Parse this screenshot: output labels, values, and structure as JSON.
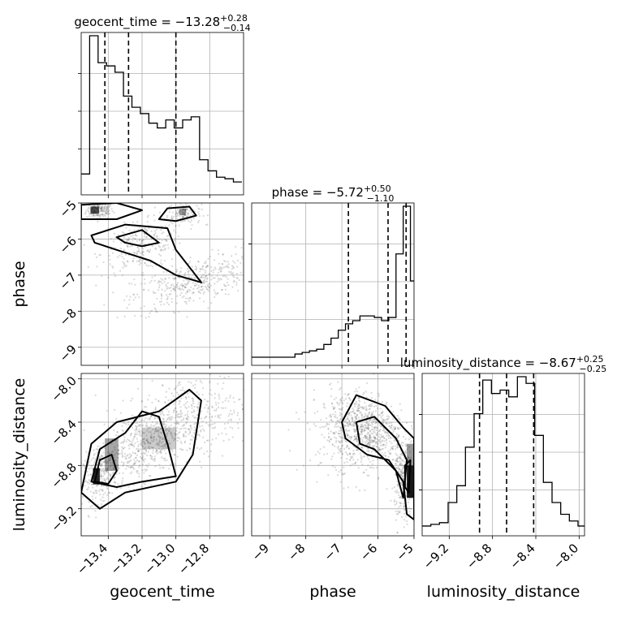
{
  "chart_data": {
    "type": "corner",
    "parameters": [
      "geocent_time",
      "phase",
      "luminosity_distance"
    ],
    "axis_labels": {
      "geocent_time": "geocent_time",
      "phase": "phase",
      "luminosity_distance": "luminosity_distance"
    },
    "titles": {
      "geocent_time": {
        "prefix": "geocent_time = ",
        "median": "−13.28",
        "upper": "+0.28",
        "lower": "−0.14"
      },
      "phase": {
        "prefix": "phase = ",
        "median": "−5.72",
        "upper": "+0.50",
        "lower": "−1.10"
      },
      "luminosity_distance": {
        "prefix": "luminosity_distance = ",
        "median": "−8.67",
        "upper": "+0.25",
        "lower": "−0.25"
      }
    },
    "ranges": {
      "geocent_time": [
        -13.56,
        -12.6
      ],
      "phase": [
        -9.5,
        -5.0
      ],
      "luminosity_distance": [
        -9.45,
        -7.95
      ]
    },
    "ticks": {
      "geocent_time": {
        "values": [
          -13.4,
          -13.2,
          -13.0,
          -12.8
        ],
        "labels": [
          "−13.4",
          "−13.2",
          "−13.0",
          "−12.8"
        ]
      },
      "phase": {
        "values": [
          -9,
          -8,
          -7,
          -6,
          -5
        ],
        "labels": [
          "−9",
          "−8",
          "−7",
          "−6",
          "−5"
        ]
      },
      "luminosity_distance": {
        "values": [
          -9.2,
          -8.8,
          -8.4,
          -8.0
        ],
        "labels": [
          "−9.2",
          "−8.8",
          "−8.4",
          "−8.0"
        ]
      }
    },
    "quantiles": {
      "geocent_time": [
        -13.42,
        -13.28,
        -13.0
      ],
      "phase": [
        -6.82,
        -5.72,
        -5.22
      ],
      "luminosity_distance": [
        -8.92,
        -8.67,
        -8.42
      ]
    },
    "histograms": {
      "geocent_time": {
        "edges": [
          -13.56,
          -13.51,
          -13.46,
          -13.41,
          -13.36,
          -13.31,
          -13.26,
          -13.21,
          -13.16,
          -13.11,
          -13.06,
          -13.01,
          -12.96,
          -12.91,
          -12.86,
          -12.81,
          -12.76,
          -12.71,
          -12.66,
          -12.61
        ],
        "counts": [
          0.08,
          0.95,
          0.78,
          0.76,
          0.72,
          0.57,
          0.5,
          0.46,
          0.4,
          0.37,
          0.42,
          0.37,
          0.42,
          0.44,
          0.17,
          0.1,
          0.06,
          0.05,
          0.03
        ]
      },
      "phase": {
        "edges": [
          -9.5,
          -9.3,
          -9.1,
          -8.9,
          -8.7,
          -8.5,
          -8.3,
          -8.1,
          -7.9,
          -7.7,
          -7.5,
          -7.3,
          -7.1,
          -6.9,
          -6.7,
          -6.5,
          -6.3,
          -6.1,
          -5.9,
          -5.7,
          -5.5,
          -5.3,
          -5.1,
          -5.0
        ],
        "counts": [
          0,
          0,
          0,
          0,
          0,
          0,
          0.02,
          0.03,
          0.04,
          0.05,
          0.08,
          0.12,
          0.17,
          0.21,
          0.23,
          0.26,
          0.26,
          0.25,
          0.23,
          0.25,
          0.65,
          0.95,
          0.48
        ]
      },
      "luminosity_distance": {
        "edges": [
          -9.45,
          -9.37,
          -9.29,
          -9.21,
          -9.13,
          -9.05,
          -8.97,
          -8.89,
          -8.81,
          -8.73,
          -8.65,
          -8.57,
          -8.49,
          -8.41,
          -8.33,
          -8.25,
          -8.17,
          -8.09,
          -8.01,
          -7.95
        ],
        "counts": [
          0.01,
          0.02,
          0.03,
          0.15,
          0.25,
          0.48,
          0.68,
          0.88,
          0.8,
          0.82,
          0.78,
          0.9,
          0.86,
          0.55,
          0.27,
          0.15,
          0.08,
          0.04,
          0.01
        ]
      }
    }
  }
}
